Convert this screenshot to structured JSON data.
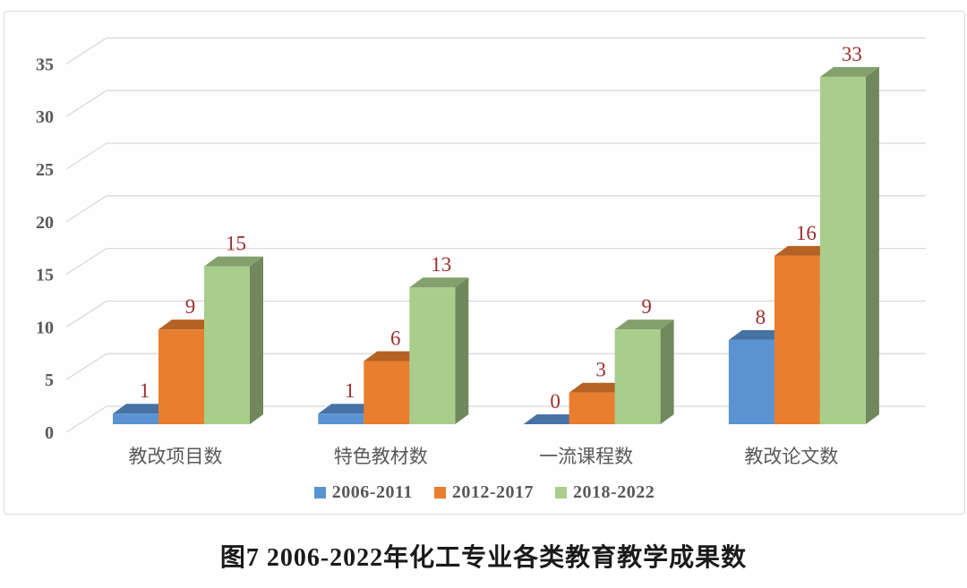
{
  "chart_data": {
    "type": "bar",
    "variant": "3d-clustered-column",
    "title": "",
    "xlabel": "",
    "ylabel": "",
    "categories": [
      "教改项目数",
      "特色教材数",
      "一流课程数",
      "教改论文数"
    ],
    "series": [
      {
        "name": "2006-2011",
        "color": "#5B93D2",
        "values": [
          1,
          1,
          0,
          8
        ]
      },
      {
        "name": "2012-2017",
        "color": "#E87E2E",
        "values": [
          9,
          6,
          3,
          16
        ]
      },
      {
        "name": "2018-2022",
        "color": "#A9CE8C",
        "values": [
          15,
          13,
          9,
          33
        ]
      }
    ],
    "ylim": [
      0,
      35
    ],
    "yticks": [
      0,
      5,
      10,
      15,
      20,
      25,
      30,
      35
    ],
    "grid": true,
    "legend_position": "bottom",
    "colors": {
      "data_label": "#9E2F2F",
      "axis_label": "#595959",
      "category_label": "#595959",
      "gridline": "#D9D9D9",
      "frame_border": "#DCDCDC",
      "caption_text": "#1A1A1A"
    }
  },
  "caption": {
    "text": "图7 2006-2022年化工专业各类教育教学成果数"
  }
}
